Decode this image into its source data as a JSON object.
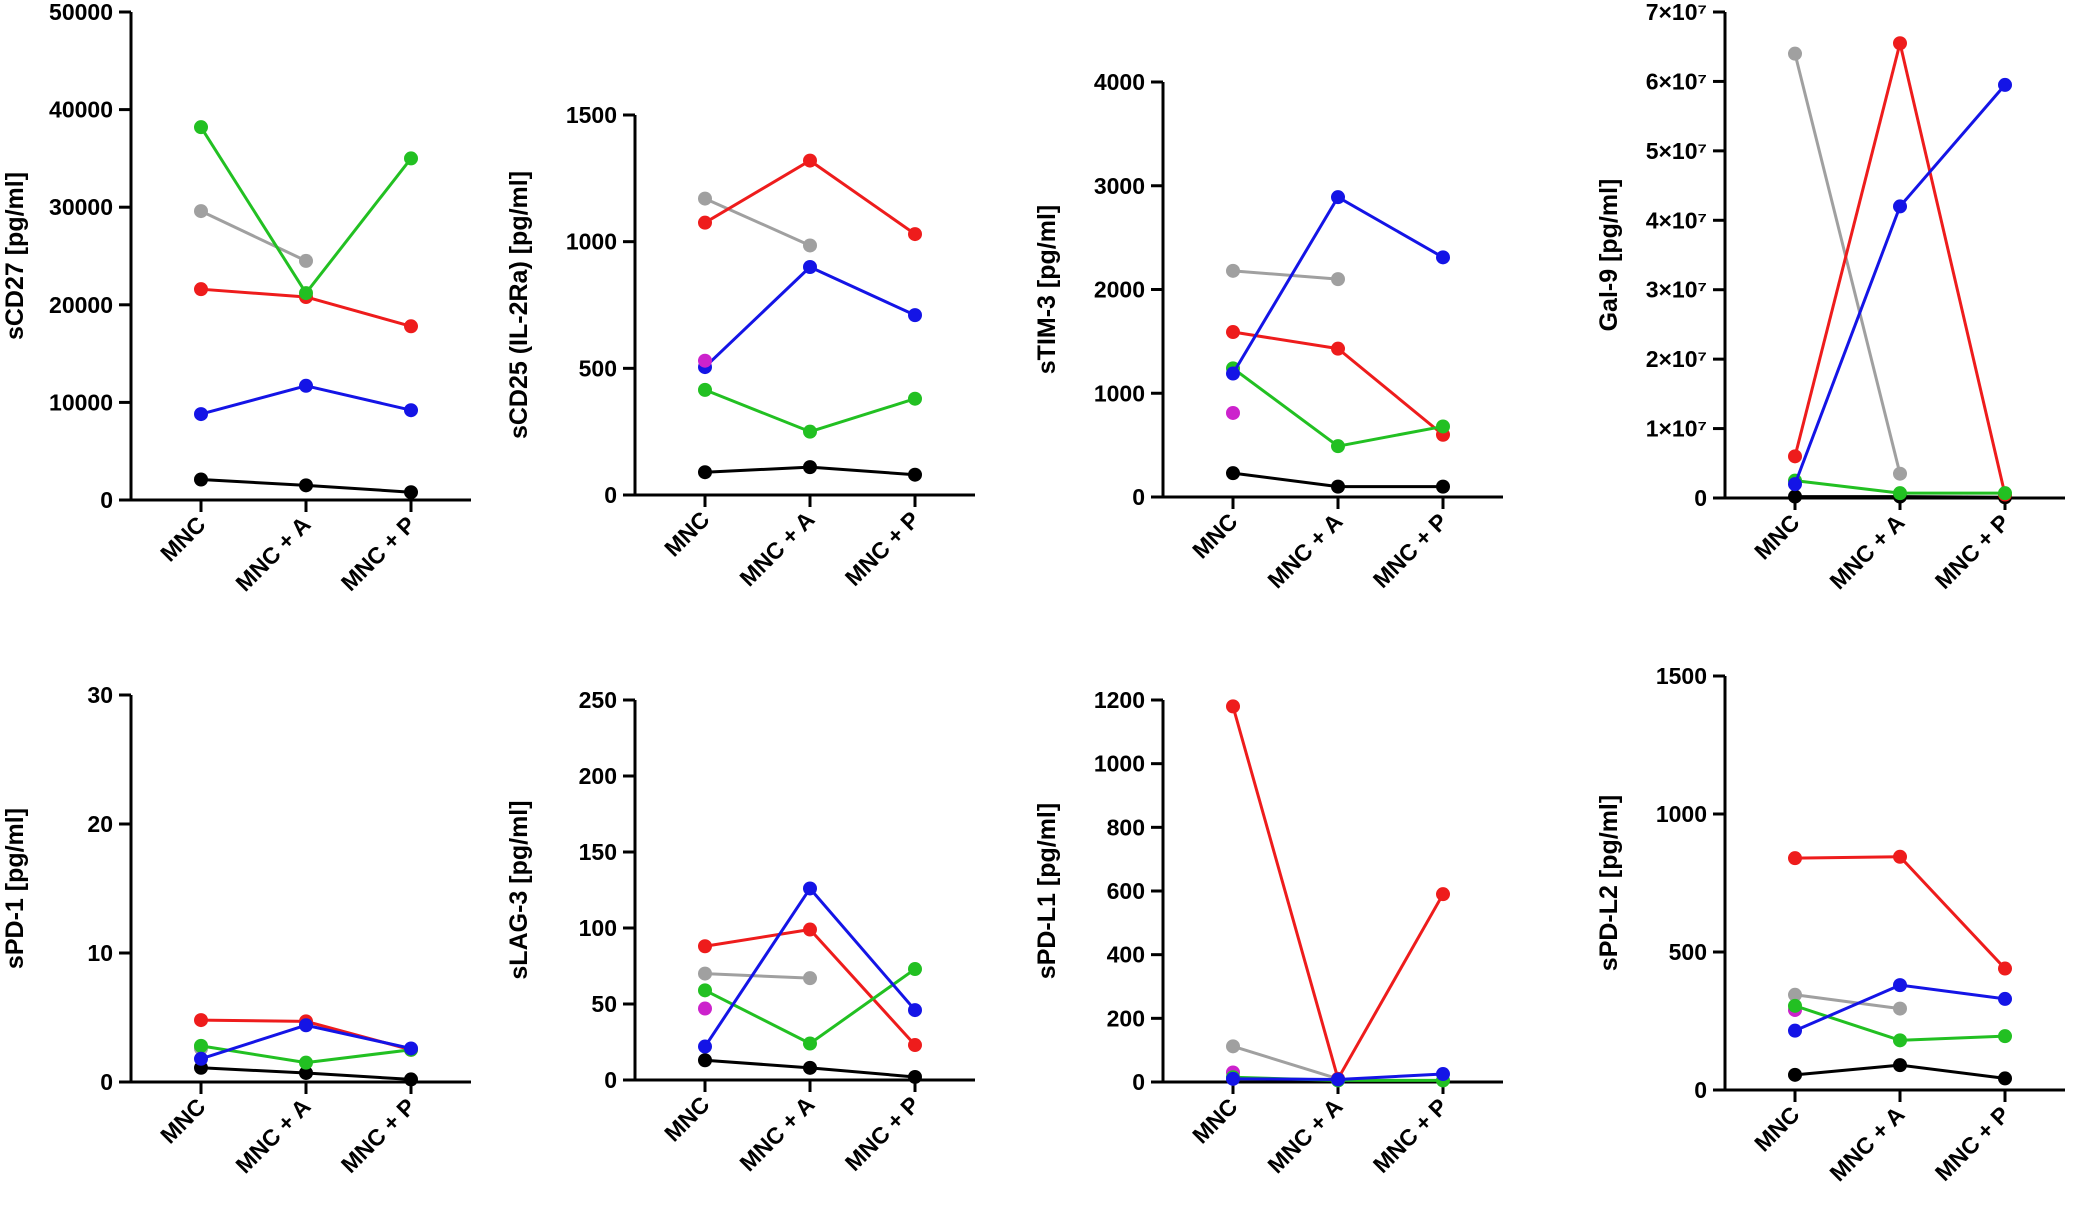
{
  "colors": {
    "black": "#000000",
    "grey": "#a0a0a0",
    "red": "#ee1c1c",
    "green": "#22c022",
    "blue": "#1414e6",
    "magenta": "#cc22cc"
  },
  "chart_data": [
    {
      "type": "line",
      "ylabel": "sCD27 [pg/ml]",
      "categories": [
        "MNC",
        "MNC + A",
        "MNC + P"
      ],
      "ylim": [
        0,
        50000
      ],
      "yticks": [
        0,
        10000,
        20000,
        30000,
        40000,
        50000
      ],
      "ytick_labels": [
        "0",
        "10000",
        "20000",
        "30000",
        "40000",
        "50000"
      ],
      "series": [
        {
          "name": "black",
          "values": [
            2100,
            1500,
            800
          ]
        },
        {
          "name": "grey",
          "values": [
            29600,
            24500,
            null
          ]
        },
        {
          "name": "red",
          "values": [
            21600,
            20800,
            17800
          ]
        },
        {
          "name": "green",
          "values": [
            38200,
            21200,
            35000
          ]
        },
        {
          "name": "blue",
          "values": [
            8800,
            11700,
            9200
          ]
        }
      ]
    },
    {
      "type": "line",
      "ylabel": "sCD25 (IL-2Ra) [pg/ml]",
      "categories": [
        "MNC",
        "MNC + A",
        "MNC + P"
      ],
      "ylim": [
        0,
        1500
      ],
      "yticks": [
        0,
        500,
        1000,
        1500
      ],
      "ytick_labels": [
        "0",
        "500",
        "1000",
        "1500"
      ],
      "series": [
        {
          "name": "black",
          "values": [
            90,
            110,
            80
          ]
        },
        {
          "name": "grey",
          "values": [
            1170,
            985,
            null
          ]
        },
        {
          "name": "red",
          "values": [
            1075,
            1320,
            1030
          ]
        },
        {
          "name": "green",
          "values": [
            415,
            250,
            380
          ]
        },
        {
          "name": "blue",
          "values": [
            505,
            900,
            710
          ]
        },
        {
          "name": "magenta",
          "values": [
            530,
            null,
            null
          ]
        }
      ]
    },
    {
      "type": "line",
      "ylabel": "sTIM-3 [pg/ml]",
      "categories": [
        "MNC",
        "MNC + A",
        "MNC + P"
      ],
      "ylim": [
        0,
        4000
      ],
      "yticks": [
        0,
        1000,
        2000,
        3000,
        4000
      ],
      "ytick_labels": [
        "0",
        "1000",
        "2000",
        "3000",
        "4000"
      ],
      "series": [
        {
          "name": "black",
          "values": [
            230,
            100,
            100
          ]
        },
        {
          "name": "grey",
          "values": [
            2180,
            2100,
            null
          ]
        },
        {
          "name": "red",
          "values": [
            1590,
            1430,
            600
          ]
        },
        {
          "name": "green",
          "values": [
            1240,
            490,
            680
          ]
        },
        {
          "name": "blue",
          "values": [
            1190,
            2890,
            2310
          ]
        },
        {
          "name": "magenta",
          "values": [
            810,
            null,
            null
          ]
        }
      ]
    },
    {
      "type": "line",
      "ylabel": "Gal-9 [pg/ml]",
      "categories": [
        "MNC",
        "MNC + A",
        "MNC + P"
      ],
      "ylim": [
        0,
        70000000
      ],
      "yticks": [
        0,
        10000000,
        20000000,
        30000000,
        40000000,
        50000000,
        60000000,
        70000000
      ],
      "ytick_labels": [
        "0",
        "1×10⁷",
        "2×10⁷",
        "3×10⁷",
        "4×10⁷",
        "5×10⁷",
        "6×10⁷",
        "7×10⁷"
      ],
      "series": [
        {
          "name": "black",
          "values": [
            200000,
            200000,
            100000
          ]
        },
        {
          "name": "grey",
          "values": [
            64000000,
            3500000,
            null
          ]
        },
        {
          "name": "red",
          "values": [
            6000000,
            65500000,
            500000
          ]
        },
        {
          "name": "green",
          "values": [
            2500000,
            700000,
            700000
          ]
        },
        {
          "name": "blue",
          "values": [
            2000000,
            42000000,
            59500000
          ]
        }
      ]
    },
    {
      "type": "line",
      "ylabel": "sPD-1 [pg/ml]",
      "categories": [
        "MNC",
        "MNC + A",
        "MNC + P"
      ],
      "ylim": [
        0,
        30
      ],
      "yticks": [
        0,
        10,
        20,
        30
      ],
      "ytick_labels": [
        "0",
        "10",
        "20",
        "30"
      ],
      "series": [
        {
          "name": "black",
          "values": [
            1.1,
            0.7,
            0.2
          ]
        },
        {
          "name": "grey",
          "values": [
            2.6,
            null,
            null
          ]
        },
        {
          "name": "red",
          "values": [
            4.8,
            4.7,
            2.5
          ]
        },
        {
          "name": "green",
          "values": [
            2.8,
            1.5,
            2.5
          ]
        },
        {
          "name": "blue",
          "values": [
            1.8,
            4.4,
            2.6
          ]
        }
      ]
    },
    {
      "type": "line",
      "ylabel": "sLAG-3 [pg/ml]",
      "categories": [
        "MNC",
        "MNC + A",
        "MNC + P"
      ],
      "ylim": [
        0,
        250
      ],
      "yticks": [
        0,
        50,
        100,
        150,
        200,
        250
      ],
      "ytick_labels": [
        "0",
        "50",
        "100",
        "150",
        "200",
        "250"
      ],
      "series": [
        {
          "name": "black",
          "values": [
            13,
            8,
            2
          ]
        },
        {
          "name": "grey",
          "values": [
            70,
            67,
            null
          ]
        },
        {
          "name": "red",
          "values": [
            88,
            99,
            23
          ]
        },
        {
          "name": "green",
          "values": [
            59,
            24,
            73
          ]
        },
        {
          "name": "blue",
          "values": [
            22,
            126,
            46
          ]
        },
        {
          "name": "magenta",
          "values": [
            47,
            null,
            null
          ]
        }
      ]
    },
    {
      "type": "line",
      "ylabel": "sPD-L1 [pg/ml]",
      "categories": [
        "MNC",
        "MNC + A",
        "MNC + P"
      ],
      "ylim": [
        0,
        1200
      ],
      "yticks": [
        0,
        200,
        400,
        600,
        800,
        1000,
        1200
      ],
      "ytick_labels": [
        "0",
        "200",
        "400",
        "600",
        "800",
        "1000",
        "1200"
      ],
      "series": [
        {
          "name": "magenta",
          "values": [
            30,
            null,
            null
          ]
        },
        {
          "name": "grey",
          "values": [
            112,
            10,
            null
          ]
        },
        {
          "name": "green",
          "values": [
            15,
            5,
            5
          ]
        },
        {
          "name": "red",
          "values": [
            1180,
            10,
            590
          ]
        },
        {
          "name": "blue",
          "values": [
            10,
            8,
            25
          ]
        }
      ]
    },
    {
      "type": "line",
      "ylabel": "sPD-L2 [pg/ml]",
      "categories": [
        "MNC",
        "MNC + A",
        "MNC + P"
      ],
      "ylim": [
        0,
        1500
      ],
      "yticks": [
        0,
        500,
        1000,
        1500
      ],
      "ytick_labels": [
        "0",
        "500",
        "1000",
        "1500"
      ],
      "series": [
        {
          "name": "black",
          "values": [
            55,
            90,
            42
          ]
        },
        {
          "name": "magenta",
          "values": [
            290,
            null,
            null
          ]
        },
        {
          "name": "grey",
          "values": [
            345,
            295,
            null
          ]
        },
        {
          "name": "red",
          "values": [
            840,
            845,
            440
          ]
        },
        {
          "name": "green",
          "values": [
            305,
            180,
            195
          ]
        },
        {
          "name": "blue",
          "values": [
            215,
            380,
            330
          ]
        }
      ]
    }
  ]
}
